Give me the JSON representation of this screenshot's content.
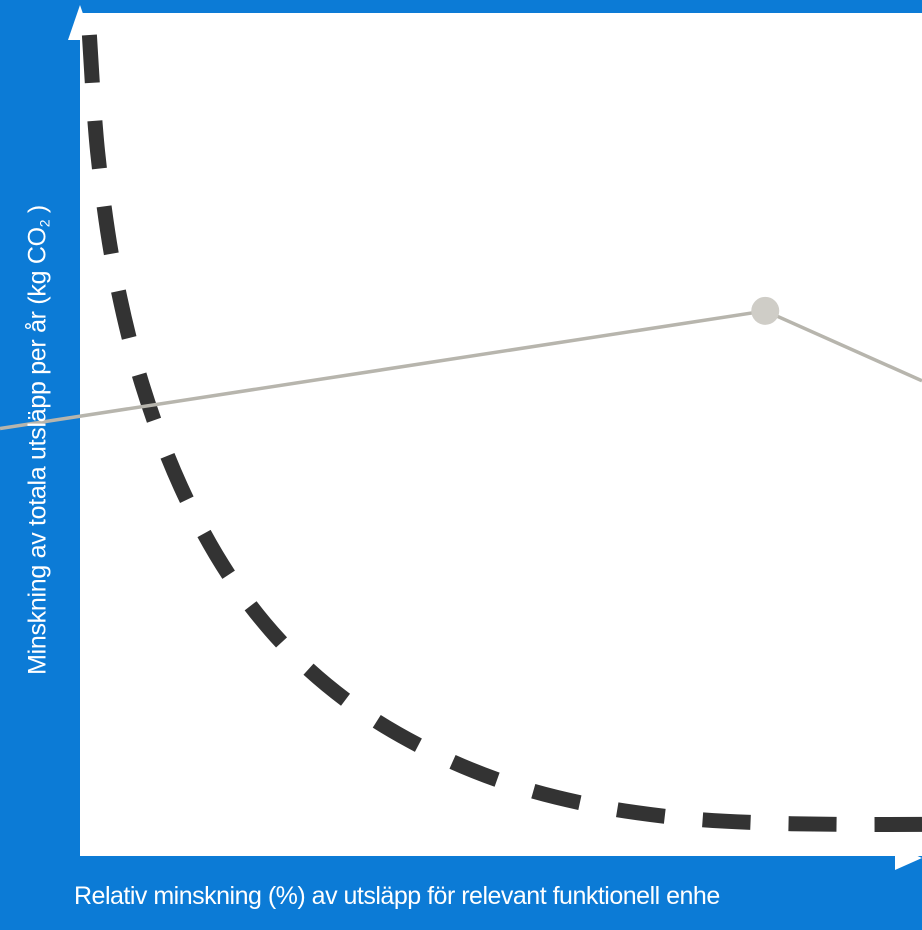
{
  "colors": {
    "background_frame": "#0c7bd6",
    "plot_area": "#ffffff",
    "dashed_curve": "#333333",
    "solid_line": "#b7b5ad",
    "marker": "#cfcdc7"
  },
  "chart_data": {
    "type": "line",
    "title": "",
    "xlabel": "Relativ minskning (%) av utsläpp för relevant funktionell enhe",
    "ylabel": {
      "text": "Minskning av totala utsläpp per år (kg CO",
      "subscript": "2",
      "suffix": " )"
    },
    "xlim": [
      0,
      100
    ],
    "ylim": [
      0,
      100
    ],
    "grid": false,
    "legend": "none",
    "series": [
      {
        "style": "dashed",
        "x": [
          9.7,
          10.6,
          12.4,
          15.4,
          19.6,
          24.8,
          31.1,
          38.4,
          46.5,
          55.0,
          63.9,
          73.1,
          82.5,
          92.0,
          100
        ],
        "y": [
          100,
          85.2,
          70.4,
          56.1,
          43.2,
          32.1,
          22.9,
          15.6,
          10.0,
          5.9,
          3.2,
          1.6,
          0.9,
          0.7,
          0.7
        ]
      },
      {
        "style": "solid",
        "x": [
          0,
          83.0,
          100
        ],
        "y": [
          50.5,
          65.3,
          56.5
        ],
        "markers": [
          {
            "x": 83.0,
            "y": 65.3
          }
        ]
      }
    ]
  }
}
